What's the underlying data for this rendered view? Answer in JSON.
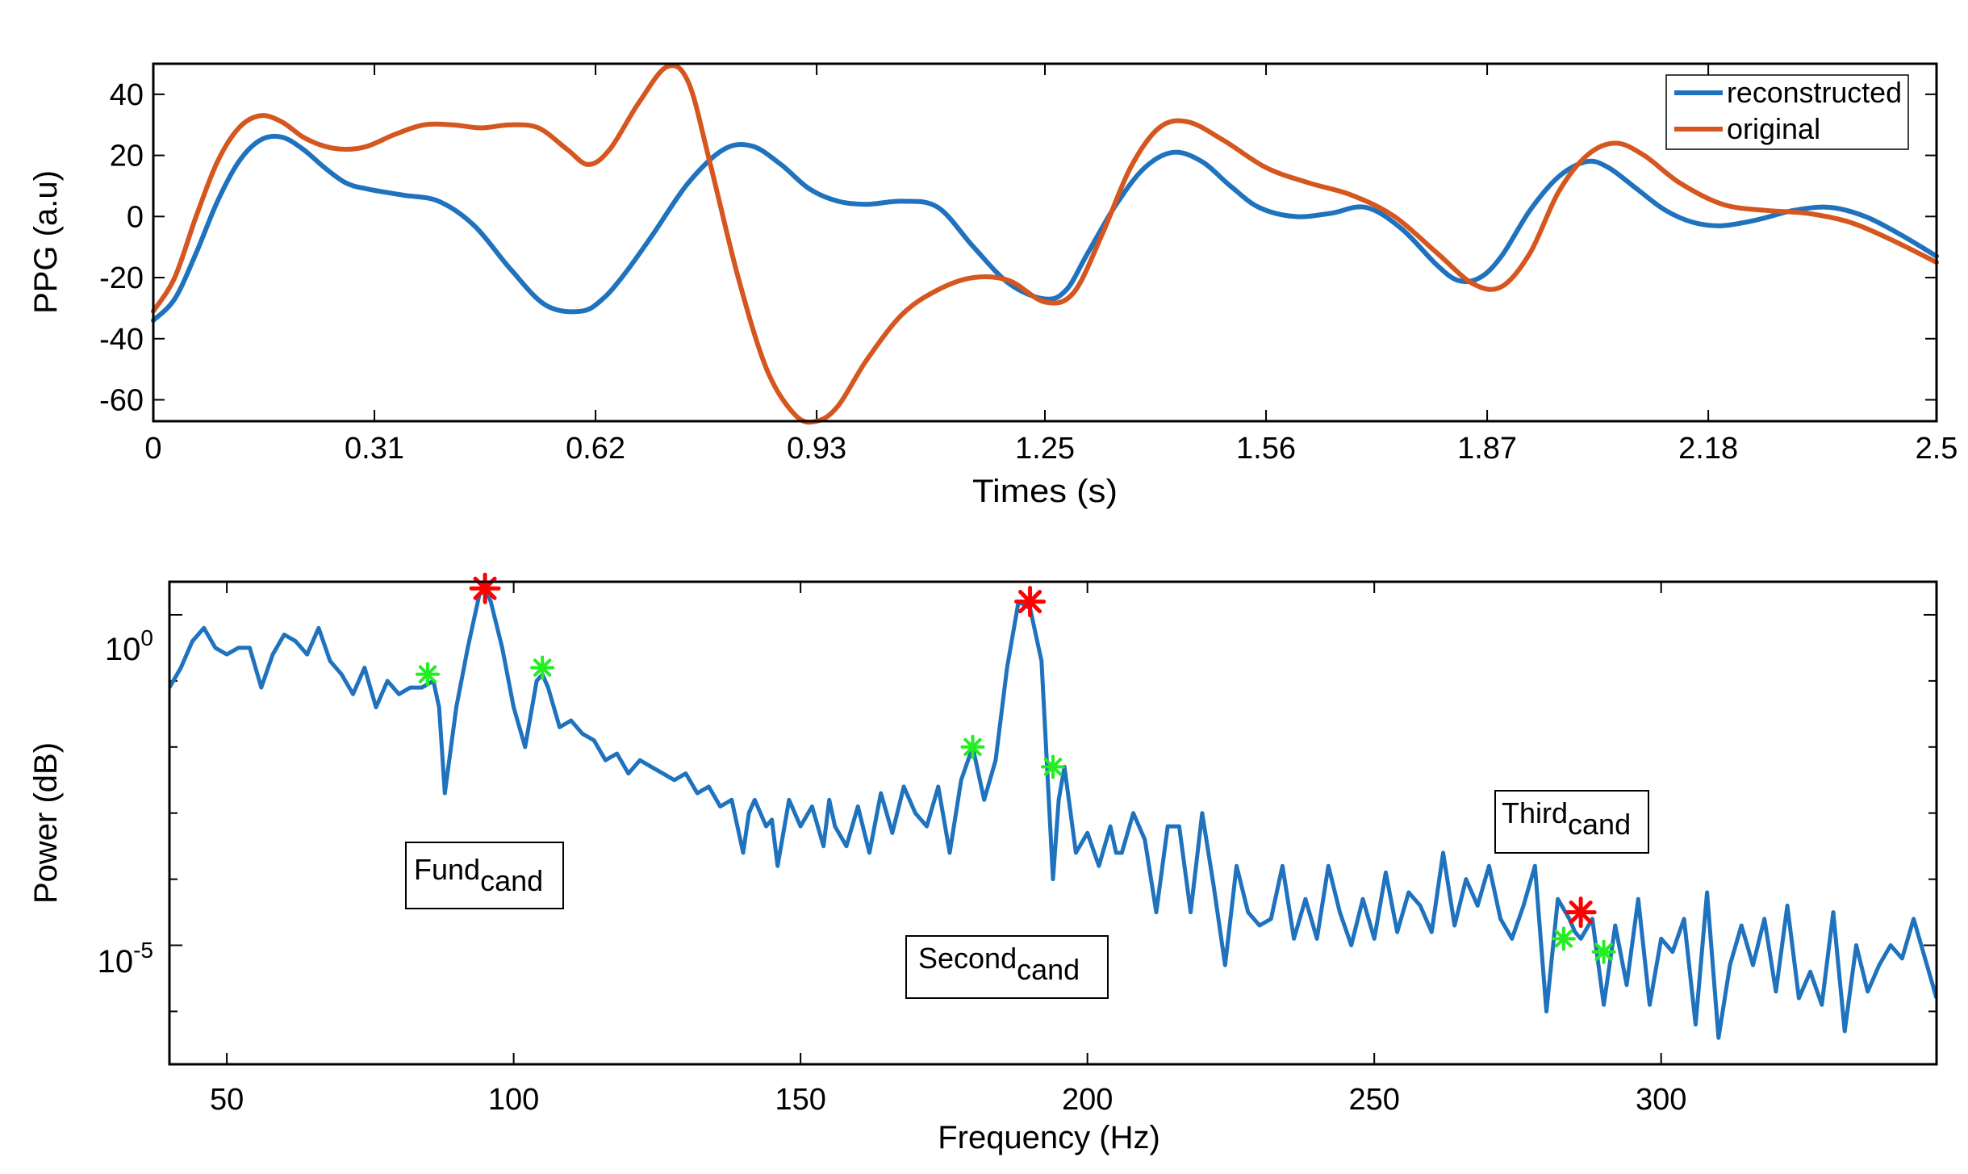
{
  "colors": {
    "reconstructed": "#1f72bd",
    "original": "#d5561e",
    "peak_red": "#ff0000",
    "peak_green": "#22ee22",
    "axis": "#000000",
    "background": "#ffffff"
  },
  "chart_data": [
    {
      "type": "line",
      "id": "top",
      "xlabel": "Times (s)",
      "ylabel": "PPG (a.u)",
      "xlim": [
        0,
        2.5
      ],
      "ylim": [
        -67,
        50
      ],
      "xticks": [
        0,
        0.31,
        0.62,
        0.93,
        1.25,
        1.56,
        1.87,
        2.18,
        2.5
      ],
      "xtick_labels": [
        "0",
        "0.31",
        "0.62",
        "0.93",
        "1.25",
        "1.56",
        "1.87",
        "2.18",
        "2.5"
      ],
      "yticks": [
        -60,
        -40,
        -20,
        0,
        20,
        40
      ],
      "ytick_labels": [
        "-60",
        "-40",
        "-20",
        "0",
        "20",
        "40"
      ],
      "legend_position": "top-right",
      "series": [
        {
          "name": "reconstructed",
          "x": [
            0.0,
            0.03,
            0.06,
            0.09,
            0.12,
            0.15,
            0.18,
            0.21,
            0.24,
            0.27,
            0.3,
            0.35,
            0.4,
            0.45,
            0.5,
            0.55,
            0.6,
            0.63,
            0.66,
            0.7,
            0.75,
            0.8,
            0.84,
            0.88,
            0.92,
            0.96,
            1.0,
            1.05,
            1.1,
            1.15,
            1.2,
            1.25,
            1.28,
            1.31,
            1.35,
            1.39,
            1.43,
            1.47,
            1.51,
            1.55,
            1.6,
            1.65,
            1.7,
            1.75,
            1.8,
            1.83,
            1.86,
            1.89,
            1.93,
            1.97,
            2.01,
            2.04,
            2.08,
            2.12,
            2.16,
            2.2,
            2.25,
            2.3,
            2.35,
            2.4,
            2.45,
            2.5
          ],
          "values": [
            -34,
            -27,
            -12,
            5,
            18,
            25,
            26,
            22,
            16,
            11,
            9,
            7,
            5,
            -3,
            -17,
            -29,
            -31,
            -27,
            -19,
            -6,
            11,
            22,
            23,
            17,
            9,
            5,
            4,
            5,
            3,
            -10,
            -22,
            -27,
            -24,
            -12,
            4,
            16,
            21,
            18,
            10,
            3,
            0,
            1,
            3,
            -4,
            -16,
            -21,
            -20,
            -13,
            2,
            13,
            18,
            16,
            9,
            2,
            -2,
            -3,
            -1,
            2,
            3,
            0,
            -6,
            -13
          ]
        },
        {
          "name": "original",
          "x": [
            0.0,
            0.03,
            0.06,
            0.09,
            0.12,
            0.15,
            0.18,
            0.21,
            0.24,
            0.27,
            0.3,
            0.34,
            0.38,
            0.42,
            0.46,
            0.5,
            0.54,
            0.58,
            0.61,
            0.64,
            0.68,
            0.72,
            0.75,
            0.78,
            0.82,
            0.86,
            0.9,
            0.93,
            0.96,
            1.0,
            1.05,
            1.1,
            1.15,
            1.2,
            1.25,
            1.29,
            1.33,
            1.37,
            1.41,
            1.45,
            1.5,
            1.56,
            1.62,
            1.68,
            1.74,
            1.8,
            1.85,
            1.89,
            1.93,
            1.97,
            2.01,
            2.05,
            2.09,
            2.14,
            2.2,
            2.26,
            2.32,
            2.38,
            2.44,
            2.5
          ],
          "values": [
            -31,
            -20,
            0,
            18,
            29,
            33,
            31,
            26,
            23,
            22,
            23,
            27,
            30,
            30,
            29,
            30,
            29,
            22,
            17,
            22,
            37,
            49,
            44,
            18,
            -20,
            -50,
            -65,
            -67,
            -62,
            -47,
            -32,
            -24,
            -20,
            -21,
            -28,
            -25,
            -6,
            16,
            29,
            31,
            25,
            16,
            11,
            7,
            0,
            -12,
            -22,
            -23,
            -12,
            8,
            20,
            24,
            20,
            11,
            4,
            2,
            1,
            -2,
            -8,
            -15
          ]
        }
      ]
    },
    {
      "type": "line",
      "id": "bottom",
      "xlabel": "Frequency (Hz)",
      "ylabel": "Power (dB)",
      "xlim": [
        40,
        348
      ],
      "yscale": "log",
      "ylim_log10": [
        -6.8,
        0.5
      ],
      "xticks": [
        50,
        100,
        150,
        200,
        250,
        300
      ],
      "xtick_labels": [
        "50",
        "100",
        "150",
        "200",
        "250",
        "300"
      ],
      "yticks_log10": [
        0,
        -5
      ],
      "ytick_labels": [
        {
          "base": "10",
          "exp": "0"
        },
        {
          "base": "10",
          "exp": "-5"
        }
      ],
      "series": [
        {
          "name": "spectrum",
          "x": [
            40,
            42,
            44,
            46,
            48,
            50,
            52,
            54,
            56,
            58,
            60,
            62,
            64,
            66,
            68,
            70,
            72,
            74,
            76,
            78,
            80,
            82,
            84,
            86,
            87,
            88,
            90,
            92,
            94,
            95,
            96,
            98,
            100,
            102,
            104,
            105,
            106,
            108,
            110,
            112,
            114,
            116,
            118,
            120,
            122,
            124,
            126,
            128,
            130,
            132,
            134,
            136,
            138,
            140,
            141,
            142,
            144,
            145,
            146,
            148,
            150,
            152,
            154,
            155,
            156,
            158,
            160,
            162,
            164,
            166,
            168,
            170,
            172,
            174,
            176,
            178,
            180,
            182,
            184,
            186,
            188,
            190,
            192,
            194,
            195,
            196,
            198,
            200,
            202,
            204,
            205,
            206,
            208,
            210,
            212,
            214,
            216,
            218,
            220,
            222,
            224,
            226,
            228,
            230,
            232,
            234,
            236,
            238,
            240,
            242,
            244,
            246,
            248,
            250,
            252,
            254,
            256,
            258,
            260,
            262,
            264,
            266,
            268,
            270,
            272,
            274,
            276,
            278,
            280,
            282,
            284,
            285,
            286,
            288,
            290,
            292,
            294,
            296,
            298,
            300,
            302,
            304,
            306,
            308,
            310,
            312,
            314,
            316,
            318,
            320,
            322,
            324,
            326,
            328,
            330,
            332,
            334,
            336,
            338,
            340,
            342,
            344,
            346,
            348
          ],
          "log10_values": [
            -1.1,
            -0.8,
            -0.4,
            -0.2,
            -0.5,
            -0.6,
            -0.5,
            -0.5,
            -1.1,
            -0.6,
            -0.3,
            -0.4,
            -0.6,
            -0.2,
            -0.7,
            -0.9,
            -1.2,
            -0.8,
            -1.4,
            -1.0,
            -1.2,
            -1.1,
            -1.1,
            -1.0,
            -1.4,
            -2.7,
            -1.4,
            -0.5,
            0.3,
            0.4,
            0.2,
            -0.5,
            -1.4,
            -2.0,
            -1.0,
            -0.9,
            -1.1,
            -1.7,
            -1.6,
            -1.8,
            -1.9,
            -2.2,
            -2.1,
            -2.4,
            -2.2,
            -2.3,
            -2.4,
            -2.5,
            -2.4,
            -2.7,
            -2.6,
            -2.9,
            -2.8,
            -3.6,
            -3.0,
            -2.8,
            -3.2,
            -3.1,
            -3.8,
            -2.8,
            -3.2,
            -2.9,
            -3.5,
            -2.8,
            -3.2,
            -3.5,
            -2.9,
            -3.6,
            -2.7,
            -3.3,
            -2.6,
            -3.0,
            -3.2,
            -2.6,
            -3.6,
            -2.5,
            -2.0,
            -2.8,
            -2.2,
            -0.8,
            0.2,
            0.1,
            -0.7,
            -4.0,
            -2.8,
            -2.3,
            -3.6,
            -3.3,
            -3.8,
            -3.2,
            -3.6,
            -3.6,
            -3.0,
            -3.4,
            -4.5,
            -3.2,
            -3.2,
            -4.5,
            -3.0,
            -4.1,
            -5.3,
            -3.8,
            -4.5,
            -4.7,
            -4.6,
            -3.8,
            -4.9,
            -4.3,
            -4.9,
            -3.8,
            -4.5,
            -5.0,
            -4.3,
            -4.9,
            -3.9,
            -4.8,
            -4.2,
            -4.4,
            -4.8,
            -3.6,
            -4.7,
            -4.0,
            -4.4,
            -3.8,
            -4.6,
            -4.9,
            -4.4,
            -3.8,
            -6.0,
            -4.3,
            -4.6,
            -4.8,
            -4.9,
            -4.6,
            -5.9,
            -4.7,
            -5.6,
            -4.3,
            -5.9,
            -4.9,
            -5.1,
            -4.6,
            -6.2,
            -4.2,
            -6.4,
            -5.3,
            -4.7,
            -5.3,
            -4.6,
            -5.7,
            -4.4,
            -5.8,
            -5.4,
            -5.9,
            -4.5,
            -6.3,
            -5.0,
            -5.7,
            -5.3,
            -5.0,
            -5.2,
            -4.6,
            -5.2,
            -5.8
          ]
        }
      ],
      "peaks_red": [
        {
          "x": 95,
          "log10": 0.4
        },
        {
          "x": 190,
          "log10": 0.2
        },
        {
          "x": 286,
          "log10": -4.5
        }
      ],
      "peaks_green": [
        {
          "x": 85,
          "log10": -0.9
        },
        {
          "x": 105,
          "log10": -0.8
        },
        {
          "x": 180,
          "log10": -2.0
        },
        {
          "x": 194,
          "log10": -2.3
        },
        {
          "x": 283,
          "log10": -4.9
        },
        {
          "x": 290,
          "log10": -5.1
        }
      ],
      "annotations": [
        {
          "id": "fund",
          "main": "Fund",
          "sub": "cand"
        },
        {
          "id": "second",
          "main": "Second",
          "sub": "cand"
        },
        {
          "id": "third",
          "main": "Third",
          "sub": "cand"
        }
      ]
    }
  ]
}
